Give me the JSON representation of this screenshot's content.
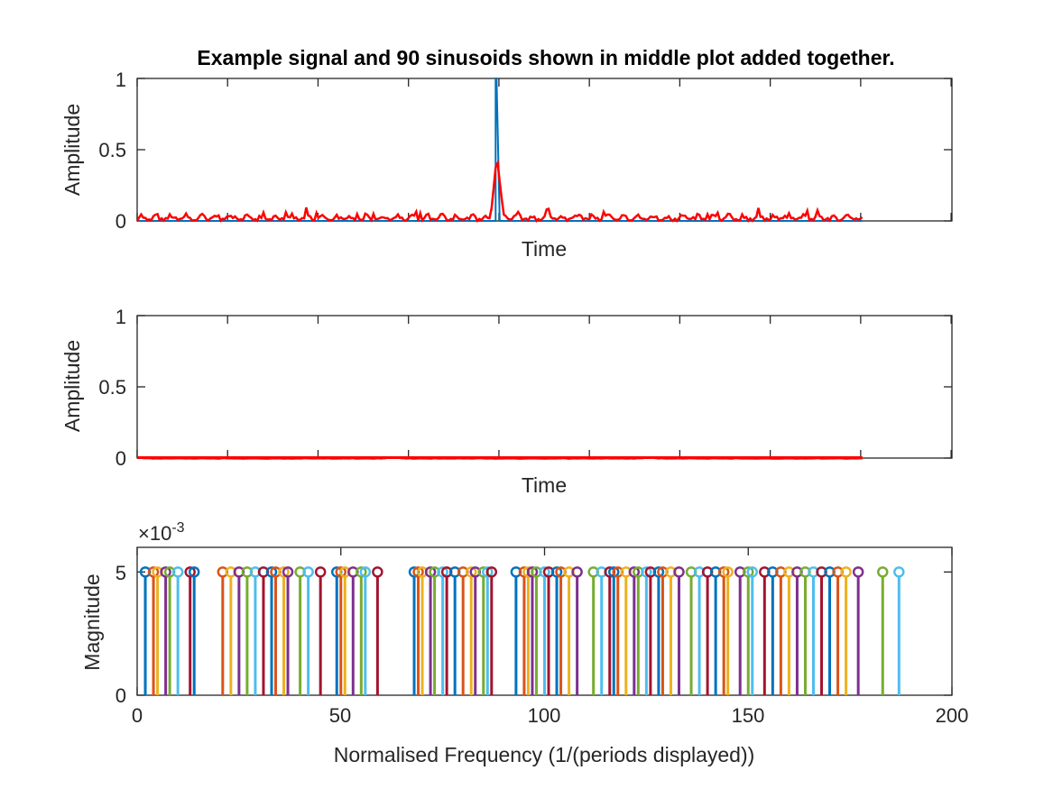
{
  "chart_data": [
    {
      "type": "line",
      "title": "Example signal and 90 sinusoids shown in middle plot added together.",
      "xlabel": "Time",
      "ylabel": "Amplitude",
      "ylim": [
        0,
        1
      ],
      "yticks": [
        "0",
        "0.5",
        "1"
      ],
      "xtick_labels_shown": false,
      "grid": false,
      "series": [
        {
          "color": "#0072BD",
          "description": "impulse",
          "values": {
            "x": [
              0,
              88,
              88,
              88,
              89,
              178
            ],
            "y": [
              0,
              0,
              1,
              1,
              0,
              0
            ]
          }
        },
        {
          "color": "#FF0000",
          "description": "sum of 90 sinusoids",
          "peak": 0.46,
          "baseline_ripple_max": 0.08
        }
      ]
    },
    {
      "type": "line",
      "xlabel": "Time",
      "ylabel": "Amplitude",
      "ylim": [
        0,
        1
      ],
      "yticks": [
        "0",
        "0.5",
        "1"
      ],
      "xtick_labels_shown": false,
      "grid": false,
      "series_count": 90,
      "amplitude_each": 0.005
    },
    {
      "type": "stem",
      "xlabel": "Normalised Frequency (1/(periods displayed))",
      "ylabel": "Magnitude",
      "xlim": [
        0,
        200
      ],
      "ylim": [
        0,
        6
      ],
      "xticks": [
        "0",
        "50",
        "100",
        "150",
        "200"
      ],
      "yticks": [
        "0",
        "5"
      ],
      "exponent_label": "×10",
      "exponent_power": "-3",
      "stem_value": 5,
      "frequencies": [
        2,
        4,
        5,
        7,
        8,
        10,
        13,
        14,
        21,
        23,
        25,
        27,
        29,
        31,
        33,
        34,
        36,
        37,
        40,
        42,
        45,
        49,
        50,
        51,
        53,
        55,
        56,
        59,
        68,
        69,
        70,
        72,
        73,
        75,
        76,
        78,
        80,
        82,
        83,
        85,
        86,
        87,
        93,
        95,
        96,
        97,
        98,
        100,
        101,
        103,
        104,
        106,
        108,
        112,
        114,
        116,
        117,
        118,
        120,
        122,
        123,
        125,
        126,
        128,
        129,
        131,
        133,
        136,
        138,
        140,
        142,
        144,
        145,
        148,
        150,
        151,
        154,
        156,
        158,
        160,
        162,
        164,
        166,
        168,
        170,
        172,
        174,
        177,
        183,
        187
      ],
      "series_colors": [
        "#0072BD",
        "#D95319",
        "#EDB120",
        "#7E2F8E",
        "#77AC30",
        "#4DBEEE",
        "#A2142F"
      ]
    }
  ]
}
